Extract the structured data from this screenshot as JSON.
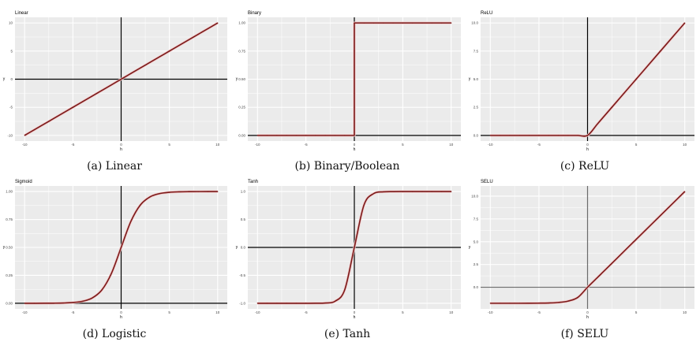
{
  "chart_data": [
    {
      "type": "line",
      "title": "Linear",
      "caption": "(a) Linear",
      "xlabel": "h",
      "ylabel": "y",
      "xlim": [
        -10,
        10
      ],
      "ylim": [
        -10,
        10
      ],
      "xticks": [
        "-10",
        "-5",
        "0",
        "5",
        "10"
      ],
      "yticks": [
        "-10",
        "-5",
        "0",
        "5",
        "10"
      ],
      "ytick_values": [
        -10,
        -5,
        0,
        5,
        10
      ],
      "axis_color": "#000000",
      "x": [
        -10,
        -9,
        -8,
        -7,
        -6,
        -5,
        -4,
        -3,
        -2,
        -1,
        0,
        1,
        2,
        3,
        4,
        5,
        6,
        7,
        8,
        9,
        10
      ],
      "y": [
        -10,
        -9,
        -8,
        -7,
        -6,
        -5,
        -4,
        -3,
        -2,
        -1,
        0,
        1,
        2,
        3,
        4,
        5,
        6,
        7,
        8,
        9,
        10
      ]
    },
    {
      "type": "line",
      "title": "Binary",
      "caption": "(b) Binary/Boolean",
      "xlabel": "h",
      "ylabel": "y",
      "step": true,
      "xlim": [
        -10,
        10
      ],
      "ylim": [
        0,
        1
      ],
      "xticks": [
        "-10",
        "-5",
        "0",
        "5",
        "10"
      ],
      "yticks": [
        "0.00",
        "0.25",
        "0.50",
        "0.75",
        "1.00"
      ],
      "ytick_values": [
        0,
        0.25,
        0.5,
        0.75,
        1
      ],
      "axis_color": "#000000",
      "x": [
        -10,
        -9,
        -8,
        -7,
        -6,
        -5,
        -4,
        -3,
        -2,
        -1,
        0,
        1,
        2,
        3,
        4,
        5,
        6,
        7,
        8,
        9,
        10
      ],
      "y": [
        0,
        0,
        0,
        0,
        0,
        0,
        0,
        0,
        0,
        0,
        1,
        1,
        1,
        1,
        1,
        1,
        1,
        1,
        1,
        1,
        1
      ]
    },
    {
      "type": "line",
      "title": "ReLU",
      "caption": "(c) ReLU",
      "xlabel": "h",
      "ylabel": "y",
      "xlim": [
        -10,
        10
      ],
      "ylim": [
        0,
        10
      ],
      "xticks": [
        "-10",
        "-5",
        "0",
        "5",
        "10"
      ],
      "yticks": [
        "0.0",
        "2.5",
        "5.0",
        "7.5",
        "10.0"
      ],
      "ytick_values": [
        0,
        2.5,
        5,
        7.5,
        10
      ],
      "axis_color": "#000000",
      "x": [
        -10,
        -9,
        -8,
        -7,
        -6,
        -5,
        -4,
        -3,
        -2,
        -1,
        0,
        1,
        2,
        3,
        4,
        5,
        6,
        7,
        8,
        9,
        10
      ],
      "y": [
        0,
        0,
        0,
        0,
        0,
        0,
        0,
        0,
        0,
        0,
        0,
        1,
        2,
        3,
        4,
        5,
        6,
        7,
        8,
        9,
        10
      ]
    },
    {
      "type": "line",
      "title": "Sigmoid",
      "caption": "(d) Logistic",
      "xlabel": "h",
      "ylabel": "y",
      "xlim": [
        -10,
        10
      ],
      "ylim": [
        0,
        1
      ],
      "xticks": [
        "-10",
        "-5",
        "0",
        "5",
        "10"
      ],
      "yticks": [
        "0.00",
        "0.25",
        "0.50",
        "0.75",
        "1.00"
      ],
      "ytick_values": [
        0,
        0.25,
        0.5,
        0.75,
        1
      ],
      "axis_color": "#000000",
      "x": [
        -10,
        -9,
        -8,
        -7,
        -6,
        -5,
        -4,
        -3,
        -2,
        -1,
        0,
        1,
        2,
        3,
        4,
        5,
        6,
        7,
        8,
        9,
        10
      ],
      "y": [
        5e-05,
        0.00012,
        0.00034,
        0.00091,
        0.00247,
        0.00669,
        0.018,
        0.0474,
        0.1192,
        0.2689,
        0.5,
        0.7311,
        0.8808,
        0.9526,
        0.982,
        0.9933,
        0.9975,
        0.9991,
        0.9997,
        0.9999,
        1.0
      ]
    },
    {
      "type": "line",
      "title": "Tanh",
      "caption": "(e) Tanh",
      "xlabel": "h",
      "ylabel": "y",
      "xlim": [
        -10,
        10
      ],
      "ylim": [
        -1,
        1
      ],
      "xticks": [
        "-10",
        "-5",
        "0",
        "5",
        "10"
      ],
      "yticks": [
        "-1.0",
        "-0.5",
        "0.0",
        "0.5",
        "1.0"
      ],
      "ytick_values": [
        -1,
        -0.5,
        0,
        0.5,
        1
      ],
      "axis_color": "#000000",
      "x": [
        -10,
        -9,
        -8,
        -7,
        -6,
        -5,
        -4,
        -3,
        -2,
        -1,
        0,
        1,
        2,
        3,
        4,
        5,
        6,
        7,
        8,
        9,
        10
      ],
      "y": [
        -1,
        -1,
        -1,
        -1,
        -1,
        -0.9999,
        -0.9993,
        -0.9951,
        -0.964,
        -0.7616,
        0,
        0.7616,
        0.964,
        0.9951,
        0.9993,
        0.9999,
        1,
        1,
        1,
        1,
        1
      ]
    },
    {
      "type": "line",
      "title": "SELU",
      "caption": "(f) SELU",
      "xlabel": "h",
      "ylabel": "y",
      "xlim": [
        -10,
        10
      ],
      "ylim": [
        -1.76,
        10.51
      ],
      "xticks": [
        "-10",
        "-5",
        "0",
        "5",
        "10"
      ],
      "yticks": [
        "0.0",
        "2.5",
        "5.0",
        "7.5",
        "10.0"
      ],
      "ytick_values": [
        0,
        2.5,
        5,
        7.5,
        10
      ],
      "axis_color": "#6b6b6b",
      "x": [
        -10,
        -9,
        -8,
        -7,
        -6,
        -5,
        -4,
        -3,
        -2,
        -1,
        0,
        1,
        2,
        3,
        4,
        5,
        6,
        7,
        8,
        9,
        10
      ],
      "y": [
        -1.758,
        -1.7579,
        -1.7575,
        -1.7565,
        -1.7537,
        -1.7463,
        -1.7259,
        -1.6706,
        -1.5202,
        -1.1113,
        0,
        1.0507,
        2.1014,
        3.1521,
        4.2028,
        5.2535,
        6.3042,
        7.3549,
        8.4056,
        9.4563,
        10.507
      ]
    }
  ],
  "colors": {
    "panel_bg": "#ebebeb",
    "grid": "#ffffff",
    "line": "#7a1a1a",
    "line_halo": "#f2c9c9"
  }
}
